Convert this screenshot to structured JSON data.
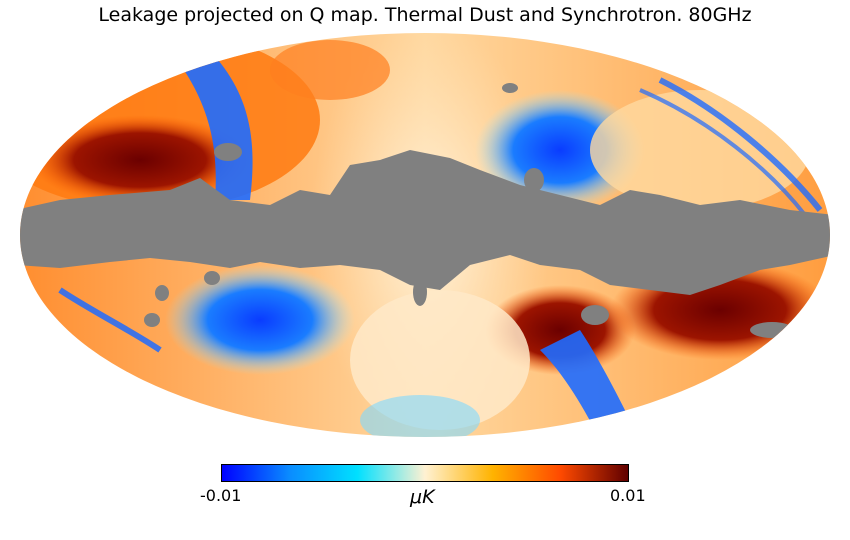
{
  "title": "Leakage projected on Q map. Thermal Dust and Synchrotron. 80GHz",
  "colorbar": {
    "min_label": "-0.01",
    "max_label": "0.01",
    "unit_label": "μK",
    "colors": [
      "#0000ff",
      "#0a8cff",
      "#00e0ff",
      "#fff1d2",
      "#ffb300",
      "#ff4a00",
      "#600000"
    ]
  },
  "map": {
    "projection": "mollweide",
    "mask_color": "#808080",
    "low_color": "#0000ff",
    "high_color": "#6b0000"
  }
}
